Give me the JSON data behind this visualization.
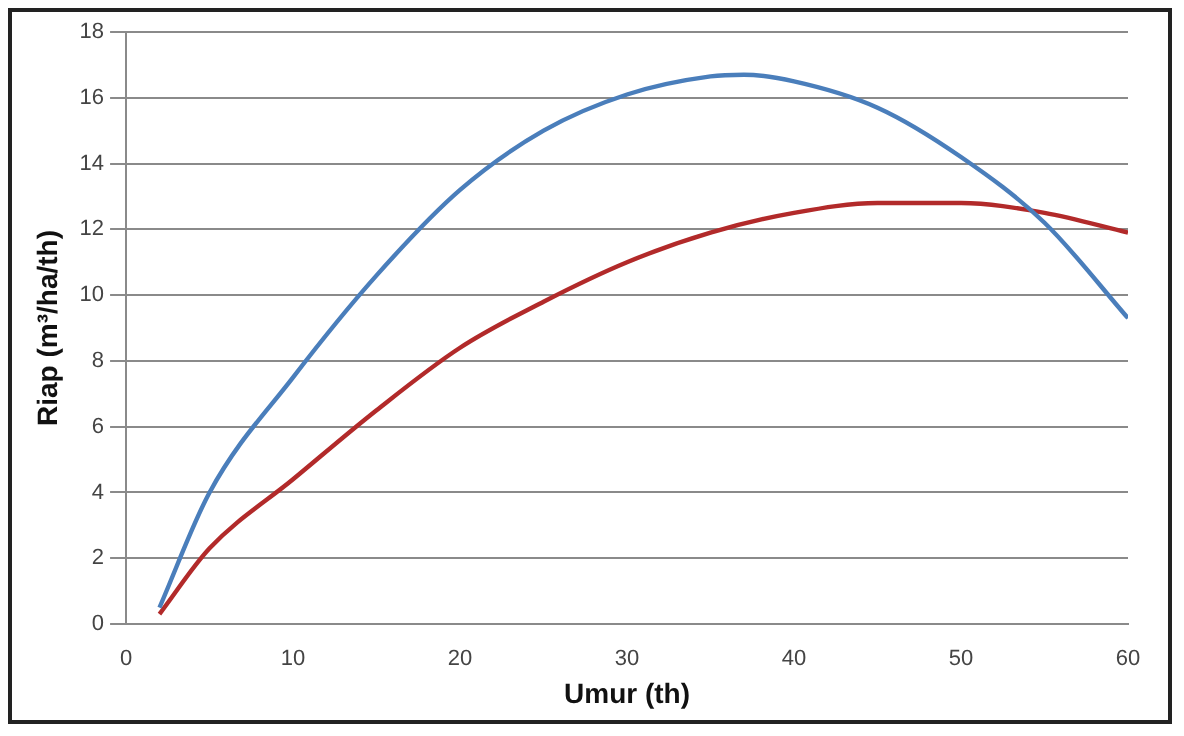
{
  "chart_data": {
    "type": "line",
    "xlabel": "Umur (th)",
    "ylabel": "Riap (m³/ha/th)",
    "xlim": [
      0,
      60
    ],
    "xticks": [
      0,
      10,
      20,
      30,
      40,
      50,
      60
    ],
    "ylim": [
      0,
      18
    ],
    "yticks": [
      0,
      2,
      4,
      6,
      8,
      10,
      12,
      14,
      16,
      18
    ],
    "grid": "y",
    "legend": false,
    "marker": "none",
    "line_style": "solid",
    "series": [
      {
        "color": "#4a7ebb",
        "x": [
          2,
          5,
          10,
          15,
          20,
          25,
          30,
          35,
          37,
          40,
          45,
          50,
          55,
          60
        ],
        "values": [
          0.5,
          4.0,
          7.5,
          10.6,
          13.2,
          15.0,
          16.1,
          16.65,
          16.7,
          16.5,
          15.7,
          14.2,
          12.2,
          9.3
        ]
      },
      {
        "color": "#b22a2a",
        "x": [
          2,
          5,
          10,
          15,
          20,
          25,
          30,
          35,
          40,
          45,
          47,
          50,
          55,
          60
        ],
        "values": [
          0.3,
          2.3,
          4.4,
          6.5,
          8.4,
          9.8,
          11.0,
          11.9,
          12.5,
          12.8,
          12.8,
          12.8,
          12.5,
          11.9
        ]
      }
    ]
  }
}
